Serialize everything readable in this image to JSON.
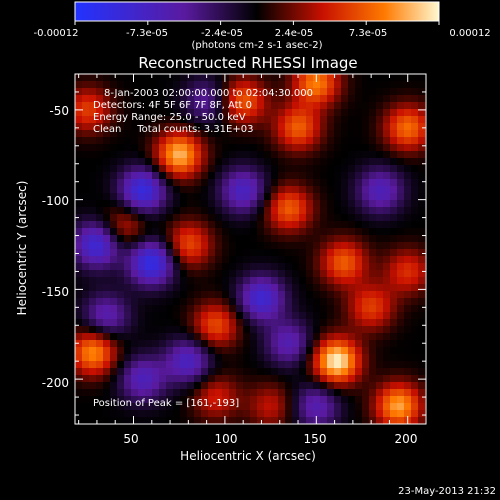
{
  "chart_data": {
    "type": "heatmap",
    "title": "Reconstructed RHESSI Image",
    "xlabel": "Heliocentric X (arcsec)",
    "ylabel": "Heliocentric Y (arcsec)",
    "xlim": [
      18,
      210
    ],
    "ylim": [
      -225,
      -30
    ],
    "x_ticks": [
      50,
      100,
      150,
      200
    ],
    "y_ticks": [
      -50,
      -100,
      -150,
      -200
    ],
    "colorbar": {
      "range": [
        -0.00012,
        0.00012
      ],
      "tick_labels": [
        "-0.00012",
        "-7.3e-05",
        "-2.4e-05",
        "2.4e-05",
        "7.3e-05",
        "0.00012"
      ],
      "unit_label": "(photons cm-2 s-1 asec-2)",
      "colors": [
        "#2233ff",
        "#5a1aa0",
        "#000000",
        "#c81000",
        "#ff7a00",
        "#fff8d0"
      ]
    },
    "annotations": [
      "8-Jan-2003 02:00:00.000 to 02:04:30.000",
      "Detectors: 4F 5F 6F 7F 8F, Att 0",
      "Energy Range: 25.0 - 50.0 keV",
      "Clean     Total counts: 3.31E+03",
      "Position of Peak = [161,-193]"
    ],
    "peak": [
      161,
      -193
    ],
    "blobs": [
      {
        "x": 161,
        "y": -190,
        "v": 1.0
      },
      {
        "x": 75,
        "y": -75,
        "v": 0.85
      },
      {
        "x": 150,
        "y": -35,
        "v": 0.7
      },
      {
        "x": 28,
        "y": -185,
        "v": 0.75
      },
      {
        "x": 110,
        "y": -45,
        "v": 0.6
      },
      {
        "x": 195,
        "y": -215,
        "v": 0.8
      },
      {
        "x": 200,
        "y": -60,
        "v": 0.65
      },
      {
        "x": 140,
        "y": -60,
        "v": 0.6
      },
      {
        "x": 80,
        "y": -125,
        "v": 0.55
      },
      {
        "x": 135,
        "y": -105,
        "v": 0.6
      },
      {
        "x": 165,
        "y": -135,
        "v": 0.6
      },
      {
        "x": 180,
        "y": -160,
        "v": 0.5
      },
      {
        "x": 95,
        "y": -170,
        "v": 0.55
      },
      {
        "x": 200,
        "y": -140,
        "v": 0.45
      },
      {
        "x": 25,
        "y": -50,
        "v": 0.5
      },
      {
        "x": 45,
        "y": -115,
        "v": 0.4
      },
      {
        "x": 125,
        "y": -215,
        "v": 0.35
      },
      {
        "x": 95,
        "y": -210,
        "v": 0.4
      },
      {
        "x": 55,
        "y": -95,
        "v": -0.8
      },
      {
        "x": 60,
        "y": -135,
        "v": -0.85
      },
      {
        "x": 120,
        "y": -155,
        "v": -0.7
      },
      {
        "x": 30,
        "y": -125,
        "v": -0.75
      },
      {
        "x": 80,
        "y": -190,
        "v": -0.6
      },
      {
        "x": 110,
        "y": -95,
        "v": -0.6
      },
      {
        "x": 185,
        "y": -95,
        "v": -0.55
      },
      {
        "x": 55,
        "y": -200,
        "v": -0.55
      },
      {
        "x": 150,
        "y": -215,
        "v": -0.5
      },
      {
        "x": 135,
        "y": -180,
        "v": -0.5
      },
      {
        "x": 35,
        "y": -165,
        "v": -0.5
      },
      {
        "x": 90,
        "y": -45,
        "v": -0.4
      }
    ]
  },
  "footer": {
    "timestamp": "23-May-2013 21:32"
  }
}
